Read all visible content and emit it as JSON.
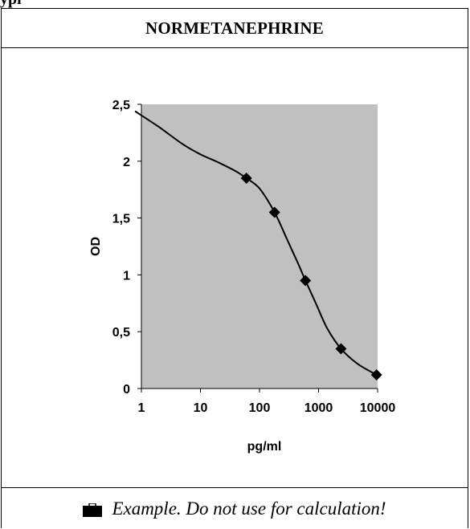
{
  "header_fragment": "ypi",
  "title": "NORMETANEPHRINE",
  "footer": {
    "text": "Example. Do not use for calculation!",
    "icon": "briefcase-icon"
  },
  "colors": {
    "plot_background": "#c0c0c0",
    "line": "#000000",
    "marker": "#000000"
  },
  "chart_data": {
    "type": "scatter",
    "title": "",
    "xlabel": "pg/ml",
    "ylabel": "OD",
    "x_scale": "log",
    "xlim": [
      1,
      10000
    ],
    "ylim": [
      0,
      2.5
    ],
    "x_ticks": [
      1,
      10,
      100,
      1000,
      10000
    ],
    "x_tick_labels": [
      "1",
      "10",
      "100",
      "1000",
      "10000"
    ],
    "y_ticks": [
      0,
      0.5,
      1,
      1.5,
      2,
      2.5
    ],
    "y_tick_labels": [
      "0",
      "0,5",
      "1",
      "1,5",
      "2",
      "2,5"
    ],
    "grid": false,
    "series": [
      {
        "points": [
          {
            "x": 60,
            "y": 1.85
          },
          {
            "x": 180,
            "y": 1.55
          },
          {
            "x": 600,
            "y": 0.95
          },
          {
            "x": 2400,
            "y": 0.35
          },
          {
            "x": 9600,
            "y": 0.12
          }
        ],
        "curve": [
          {
            "x": 0.78,
            "y": 2.44
          },
          {
            "x": 2,
            "y": 2.3
          },
          {
            "x": 5,
            "y": 2.15
          },
          {
            "x": 10,
            "y": 2.06
          },
          {
            "x": 20,
            "y": 1.99
          },
          {
            "x": 40,
            "y": 1.91
          },
          {
            "x": 60,
            "y": 1.85
          },
          {
            "x": 100,
            "y": 1.76
          },
          {
            "x": 180,
            "y": 1.55
          },
          {
            "x": 300,
            "y": 1.3
          },
          {
            "x": 450,
            "y": 1.1
          },
          {
            "x": 600,
            "y": 0.95
          },
          {
            "x": 900,
            "y": 0.75
          },
          {
            "x": 1400,
            "y": 0.53
          },
          {
            "x": 2400,
            "y": 0.35
          },
          {
            "x": 4500,
            "y": 0.22
          },
          {
            "x": 9600,
            "y": 0.12
          }
        ]
      }
    ]
  }
}
